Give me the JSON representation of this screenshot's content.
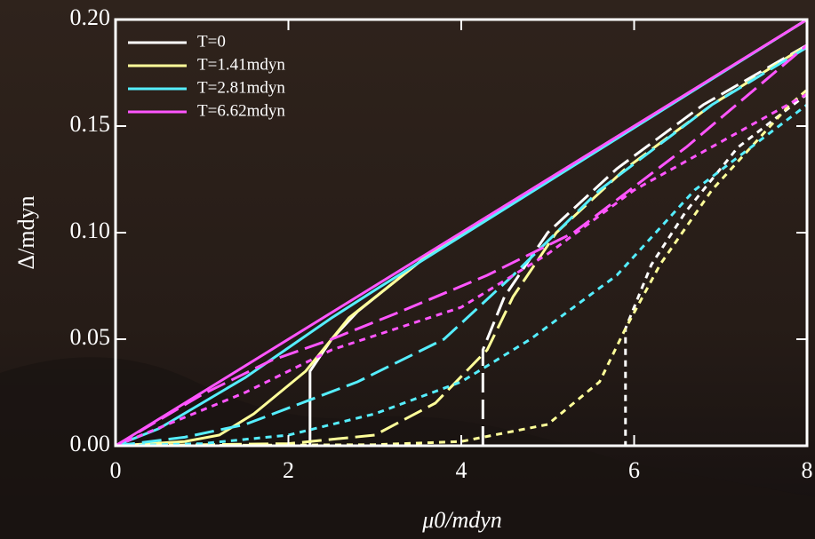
{
  "chart_data": {
    "type": "line",
    "xlabel": "μ0/mdyn",
    "ylabel": "Δ/mdyn",
    "xlim": [
      0,
      8
    ],
    "ylim": [
      0,
      0.2
    ],
    "xticks": [
      0,
      2,
      4,
      6,
      8
    ],
    "yticks": [
      {
        "value": 0,
        "label": "0.00"
      },
      {
        "value": 0.05,
        "label": "0.05"
      },
      {
        "value": 0.1,
        "label": "0.10"
      },
      {
        "value": 0.15,
        "label": "0.15"
      },
      {
        "value": 0.2,
        "label": "0.20"
      }
    ],
    "legend": "upper-left",
    "series": [
      {
        "name": "T=0",
        "color": "#ffffff",
        "dash": "solid",
        "x": [
          0,
          2.25,
          2.25,
          2.5,
          2.8,
          3.2,
          3.6,
          8
        ],
        "values": [
          0,
          0,
          0.035,
          0.05,
          0.063,
          0.076,
          0.089,
          0.2
        ]
      },
      {
        "name": "T=1.41mdyn",
        "color": "#ffff99",
        "dash": "solid",
        "x": [
          0,
          0.8,
          1.2,
          1.6,
          2.2,
          2.7,
          3.2,
          3.6,
          8
        ],
        "values": [
          0,
          0.002,
          0.005,
          0.015,
          0.035,
          0.06,
          0.076,
          0.089,
          0.2
        ]
      },
      {
        "name": "T=2.81mdyn",
        "color": "#55eeff",
        "dash": "solid",
        "x": [
          0,
          0.5,
          1,
          1.5,
          2,
          2.5,
          3,
          8
        ],
        "values": [
          0,
          0.008,
          0.02,
          0.032,
          0.046,
          0.06,
          0.073,
          0.2
        ]
      },
      {
        "name": "T=6.62mdyn",
        "color": "#ff55ff",
        "dash": "solid",
        "x": [
          0,
          8
        ],
        "values": [
          0,
          0.2
        ]
      },
      {
        "color": "#ffffff",
        "dash": "long",
        "x": [
          4.25,
          4.25,
          4.5,
          5,
          5.8,
          6.8,
          8
        ],
        "values": [
          0,
          0.045,
          0.07,
          0.1,
          0.13,
          0.16,
          0.188
        ]
      },
      {
        "color": "#ffff99",
        "dash": "long",
        "x": [
          0,
          2,
          3,
          3.7,
          4.3,
          4.6,
          5.1,
          5.9,
          6.9,
          8
        ],
        "values": [
          0,
          0.001,
          0.005,
          0.02,
          0.045,
          0.07,
          0.1,
          0.13,
          0.16,
          0.188
        ]
      },
      {
        "color": "#55eeff",
        "dash": "long",
        "x": [
          0,
          0.8,
          1.5,
          2.8,
          3.8,
          4.6,
          5.6,
          6.9,
          8
        ],
        "values": [
          0,
          0.004,
          0.01,
          0.03,
          0.05,
          0.08,
          0.12,
          0.16,
          0.187
        ]
      },
      {
        "color": "#ff55ff",
        "dash": "long",
        "x": [
          0,
          1,
          1.8,
          2.5,
          3.3,
          4.3,
          5.3,
          6.6,
          8
        ],
        "values": [
          0,
          0.024,
          0.04,
          0.05,
          0.063,
          0.08,
          0.1,
          0.14,
          0.188
        ]
      },
      {
        "color": "#ffffff",
        "dash": "short",
        "x": [
          0,
          5.9,
          5.9,
          6.2,
          6.6,
          7.2,
          8
        ],
        "values": [
          0,
          0,
          0.055,
          0.085,
          0.11,
          0.14,
          0.165
        ]
      },
      {
        "color": "#ffff99",
        "dash": "short",
        "x": [
          0,
          3,
          4,
          5,
          5.6,
          5.9,
          6.3,
          6.9,
          7.8,
          8
        ],
        "values": [
          0,
          0.0005,
          0.002,
          0.01,
          0.03,
          0.055,
          0.085,
          0.12,
          0.16,
          0.167
        ]
      },
      {
        "color": "#55eeff",
        "dash": "short",
        "x": [
          0,
          1,
          2,
          3,
          4,
          4.8,
          5.8,
          6.7,
          8
        ],
        "values": [
          0,
          0.001,
          0.005,
          0.015,
          0.03,
          0.05,
          0.08,
          0.12,
          0.16
        ]
      },
      {
        "color": "#ff55ff",
        "dash": "short",
        "x": [
          0,
          0.6,
          1.5,
          2.5,
          4,
          5,
          6,
          8
        ],
        "values": [
          0,
          0.01,
          0.025,
          0.045,
          0.065,
          0.09,
          0.12,
          0.165
        ]
      }
    ]
  }
}
